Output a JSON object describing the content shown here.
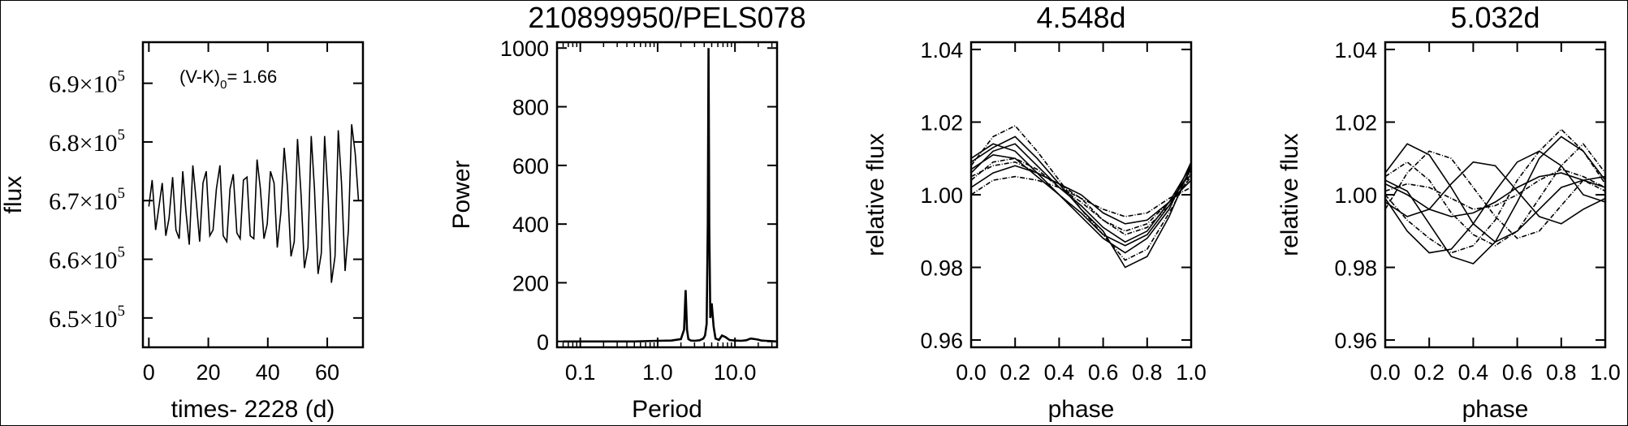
{
  "chart_data": [
    {
      "type": "line",
      "title": "",
      "xlabel": "times- 2228 (d)",
      "ylabel": "flux",
      "xlim": [
        -2,
        72
      ],
      "ylim": [
        645000,
        697000
      ],
      "x_ticks": [
        0,
        20,
        40,
        60
      ],
      "y_ticks": [
        {
          "value": 650000,
          "mant": "6.5",
          "exp": "5"
        },
        {
          "value": 660000,
          "mant": "6.6",
          "exp": "5"
        },
        {
          "value": 670000,
          "mant": "6.7",
          "exp": "5"
        },
        {
          "value": 680000,
          "mant": "6.8",
          "exp": "5"
        },
        {
          "value": 690000,
          "mant": "6.9",
          "exp": "5"
        }
      ],
      "annotation": {
        "pre": "(V-K)",
        "sub": "0",
        "post": "= 1.66"
      },
      "color": "#000000",
      "series": [
        {
          "x": [
            0,
            1.1,
            2.3,
            3.4,
            4.5,
            5.7,
            6.8,
            8,
            9.1,
            10.2,
            11.4,
            12.5,
            13.6,
            14.8,
            15.9,
            17.1,
            18.2,
            19.3,
            20.5,
            21.6,
            22.7,
            23.9,
            25,
            26.2,
            27.3,
            28.4,
            29.6,
            30.7,
            31.8,
            33,
            34.1,
            35.3,
            36.4,
            37.5,
            38.7,
            39.8,
            40.9,
            42.1,
            43.2,
            44.4,
            45.5,
            46.6,
            47.8,
            48.9,
            50,
            51.2,
            52.3,
            53.5,
            54.6,
            55.7,
            56.9,
            58,
            59.1,
            60.3,
            61.4,
            62.6,
            63.7,
            64.8,
            66,
            67.1,
            68.2,
            69.4,
            70.5
          ],
          "y": [
            669000,
            673500,
            665000,
            669000,
            673000,
            664000,
            667000,
            674000,
            665000,
            663500,
            675000,
            668000,
            662500,
            676000,
            670000,
            663000,
            673000,
            675000,
            664000,
            665000,
            672000,
            676000,
            664000,
            663000,
            672000,
            674500,
            664500,
            663500,
            673500,
            674000,
            664000,
            663500,
            677000,
            672000,
            663500,
            666000,
            675000,
            673000,
            662000,
            668000,
            679000,
            672500,
            660500,
            663000,
            680500,
            671000,
            658500,
            662000,
            681000,
            672000,
            657500,
            661000,
            681000,
            670500,
            656000,
            660500,
            682000,
            673000,
            658000,
            665000,
            683000,
            678000,
            670000
          ]
        }
      ]
    },
    {
      "type": "line",
      "title": "210899950/PELS078",
      "xlabel": "Period",
      "ylabel": "Power",
      "xscale": "log",
      "xlim": [
        0.05,
        35
      ],
      "ylim": [
        -20,
        1020
      ],
      "x_ticks": [
        {
          "value": 0.1,
          "label": "0.1"
        },
        {
          "value": 1.0,
          "label": "1.0"
        },
        {
          "value": 10.0,
          "label": "10.0"
        }
      ],
      "y_ticks": [
        0,
        200,
        400,
        600,
        800,
        1000
      ],
      "color": "#000000",
      "series": [
        {
          "x": [
            0.06,
            0.5,
            1.0,
            1.5,
            2.0,
            2.2,
            2.3,
            2.4,
            2.5,
            2.7,
            3.0,
            3.5,
            3.9,
            4.1,
            4.3,
            4.45,
            4.55,
            4.65,
            4.8,
            5.0,
            5.3,
            5.6,
            6.2,
            6.8,
            7.5,
            8.5,
            10,
            12,
            14,
            16,
            18,
            20,
            22,
            25,
            30,
            34
          ],
          "y": [
            0,
            0,
            2,
            3,
            8,
            40,
            175,
            40,
            8,
            3,
            2,
            4,
            10,
            20,
            60,
            400,
            1000,
            400,
            80,
            130,
            50,
            10,
            5,
            20,
            15,
            5,
            3,
            2,
            4,
            10,
            8,
            6,
            3,
            2,
            1,
            0
          ]
        }
      ]
    },
    {
      "type": "line",
      "title": "4.548d",
      "xlabel": "phase",
      "ylabel": "relative flux",
      "xlim": [
        0,
        1
      ],
      "ylim": [
        0.958,
        1.042
      ],
      "x_ticks": [
        0.0,
        0.2,
        0.4,
        0.6,
        0.8,
        1.0
      ],
      "y_ticks": [
        0.96,
        0.98,
        1.0,
        1.02,
        1.04
      ],
      "color": "#000000",
      "series": [
        {
          "x": [
            0,
            0.1,
            0.2,
            0.3,
            0.4,
            0.5,
            0.6,
            0.7,
            0.8,
            0.9,
            1.0
          ],
          "y": [
            1.006,
            1.012,
            1.014,
            1.008,
            1.002,
            0.997,
            0.991,
            0.987,
            0.99,
            0.998,
            1.008
          ]
        },
        {
          "x": [
            0,
            0.1,
            0.2,
            0.3,
            0.4,
            0.5,
            0.6,
            0.7,
            0.8,
            0.9,
            1.0
          ],
          "y": [
            1.008,
            1.016,
            1.019,
            1.012,
            1.004,
            0.996,
            0.989,
            0.982,
            0.985,
            0.995,
            1.006
          ]
        },
        {
          "x": [
            0,
            0.1,
            0.2,
            0.3,
            0.4,
            0.5,
            0.6,
            0.7,
            0.8,
            0.9,
            1.0
          ],
          "y": [
            1.002,
            1.006,
            1.008,
            1.006,
            1.003,
            1.0,
            0.995,
            0.992,
            0.993,
            0.998,
            1.004
          ]
        },
        {
          "x": [
            0,
            0.1,
            0.2,
            0.3,
            0.4,
            0.5,
            0.6,
            0.7,
            0.8,
            0.9,
            1.0
          ],
          "y": [
            1.004,
            1.009,
            1.01,
            1.007,
            1.002,
            0.998,
            0.993,
            0.989,
            0.991,
            0.997,
            1.005
          ]
        },
        {
          "x": [
            0,
            0.1,
            0.2,
            0.3,
            0.4,
            0.5,
            0.6,
            0.7,
            0.8,
            0.9,
            1.0
          ],
          "y": [
            1.01,
            1.014,
            1.012,
            1.006,
            1.0,
            0.994,
            0.988,
            0.984,
            0.988,
            0.996,
            1.009
          ]
        },
        {
          "x": [
            0,
            0.1,
            0.2,
            0.3,
            0.4,
            0.5,
            0.6,
            0.7,
            0.8,
            0.9,
            1.0
          ],
          "y": [
            1.0,
            1.004,
            1.005,
            1.004,
            1.002,
            0.999,
            0.996,
            0.994,
            0.995,
            0.999,
            1.002
          ]
        },
        {
          "x": [
            0,
            0.1,
            0.2,
            0.3,
            0.4,
            0.5,
            0.6,
            0.7,
            0.8,
            0.9,
            1.0
          ],
          "y": [
            1.007,
            1.011,
            1.01,
            1.005,
            1.0,
            0.995,
            0.989,
            0.986,
            0.989,
            0.997,
            1.007
          ]
        },
        {
          "x": [
            0,
            0.1,
            0.2,
            0.3,
            0.4,
            0.5,
            0.6,
            0.7,
            0.8,
            0.9,
            1.0
          ],
          "y": [
            1.005,
            1.008,
            1.009,
            1.006,
            1.003,
            0.999,
            0.993,
            0.99,
            0.992,
            0.998,
            1.006
          ]
        },
        {
          "x": [
            0,
            0.1,
            0.2,
            0.3,
            0.4,
            0.5,
            0.6,
            0.7,
            0.8,
            0.9,
            1.0
          ],
          "y": [
            1.009,
            1.013,
            1.016,
            1.01,
            1.003,
            0.996,
            0.99,
            0.98,
            0.983,
            0.994,
            1.008
          ]
        }
      ]
    },
    {
      "type": "line",
      "title": "5.032d",
      "xlabel": "phase",
      "ylabel": "relative flux",
      "xlim": [
        0,
        1
      ],
      "ylim": [
        0.958,
        1.042
      ],
      "x_ticks": [
        0.0,
        0.2,
        0.4,
        0.6,
        0.8,
        1.0
      ],
      "y_ticks": [
        0.96,
        0.98,
        1.0,
        1.02,
        1.04
      ],
      "color": "#000000",
      "series": [
        {
          "x": [
            0,
            0.1,
            0.2,
            0.3,
            0.4,
            0.5,
            0.6,
            0.7,
            0.8,
            0.9,
            1.0
          ],
          "y": [
            1.006,
            1.014,
            1.011,
            1.002,
            0.992,
            0.987,
            0.99,
            0.996,
            1.002,
            1.004,
            1.005
          ]
        },
        {
          "x": [
            0,
            0.1,
            0.2,
            0.3,
            0.4,
            0.5,
            0.6,
            0.7,
            0.8,
            0.9,
            1.0
          ],
          "y": [
            1.0,
            0.993,
            0.988,
            0.984,
            0.986,
            0.993,
            1.004,
            1.012,
            1.018,
            1.012,
            1.003
          ]
        },
        {
          "x": [
            0,
            0.1,
            0.2,
            0.3,
            0.4,
            0.5,
            0.6,
            0.7,
            0.8,
            0.9,
            1.0
          ],
          "y": [
            1.003,
            1.0,
            0.996,
            0.994,
            0.995,
            0.998,
            1.002,
            1.005,
            1.006,
            1.004,
            1.002
          ]
        },
        {
          "x": [
            0,
            0.1,
            0.2,
            0.3,
            0.4,
            0.5,
            0.6,
            0.7,
            0.8,
            0.9,
            1.0
          ],
          "y": [
            0.996,
            1.006,
            1.012,
            1.01,
            1.002,
            0.994,
            0.988,
            0.99,
            0.997,
            1.004,
            1.001
          ]
        },
        {
          "x": [
            0,
            0.1,
            0.2,
            0.3,
            0.4,
            0.5,
            0.6,
            0.7,
            0.8,
            0.9,
            1.0
          ],
          "y": [
            1.004,
            1.001,
            0.992,
            0.983,
            0.981,
            0.987,
            0.998,
            1.01,
            1.016,
            1.012,
            1.004
          ]
        },
        {
          "x": [
            0,
            0.1,
            0.2,
            0.3,
            0.4,
            0.5,
            0.6,
            0.7,
            0.8,
            0.9,
            1.0
          ],
          "y": [
            1.001,
            1.003,
            1.002,
            0.999,
            0.996,
            0.997,
            1.0,
            1.004,
            1.007,
            1.005,
            1.002
          ]
        },
        {
          "x": [
            0,
            0.1,
            0.2,
            0.3,
            0.4,
            0.5,
            0.6,
            0.7,
            0.8,
            0.9,
            1.0
          ],
          "y": [
            0.998,
            0.994,
            0.996,
            1.003,
            1.009,
            1.008,
            1.001,
            0.994,
            0.992,
            0.996,
            0.999
          ]
        },
        {
          "x": [
            0,
            0.1,
            0.2,
            0.3,
            0.4,
            0.5,
            0.6,
            0.7,
            0.8,
            0.9,
            1.0
          ],
          "y": [
            1.005,
            1.009,
            1.004,
            0.995,
            0.989,
            0.986,
            0.99,
            0.999,
            1.008,
            1.014,
            1.006
          ]
        },
        {
          "x": [
            0,
            0.1,
            0.2,
            0.3,
            0.4,
            0.5,
            0.6,
            0.7,
            0.8,
            0.9,
            1.0
          ],
          "y": [
            0.999,
            0.99,
            0.984,
            0.985,
            0.992,
            1.001,
            1.009,
            1.012,
            1.008,
            1.0,
            0.998
          ]
        }
      ]
    }
  ]
}
